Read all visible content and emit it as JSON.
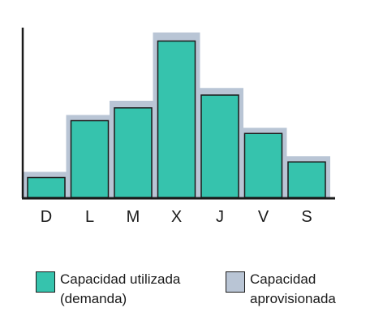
{
  "chart_data": {
    "type": "bar",
    "categories": [
      "D",
      "L",
      "M",
      "X",
      "J",
      "V",
      "S"
    ],
    "series": [
      {
        "name": "Capacidad utilizada\n(demanda)",
        "values": [
          14,
          54,
          63,
          110,
          72,
          45,
          25
        ]
      },
      {
        "name": "Capacidad\naprovisionada",
        "values": [
          18,
          58,
          68,
          116,
          77,
          49,
          29
        ]
      }
    ],
    "title": "",
    "xlabel": "",
    "ylabel": "",
    "ylim": [
      0,
      120
    ],
    "grid": false,
    "legend": "bottom",
    "colors": {
      "used": "#36c3ad",
      "provisioned": "#b9c5d5",
      "axis": "#1a1a1a"
    }
  }
}
